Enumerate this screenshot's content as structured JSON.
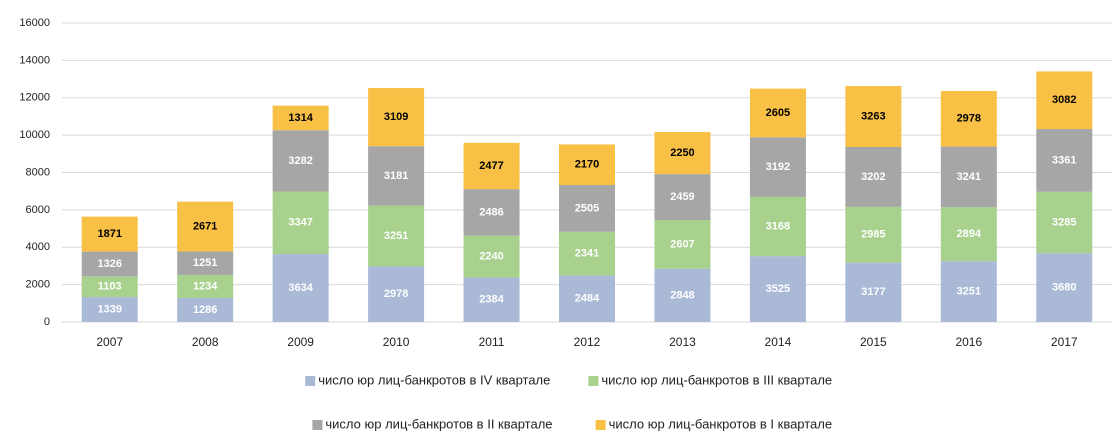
{
  "chart_data": {
    "type": "stacked_bar",
    "categories": [
      "2007",
      "2008",
      "2009",
      "2010",
      "2011",
      "2012",
      "2013",
      "2014",
      "2015",
      "2016",
      "2017"
    ],
    "series": [
      {
        "name": "число юр лиц-банкротов в IV квартале",
        "color": "#a9b9d6",
        "label_color": "#ffffff",
        "values": [
          1339,
          1286,
          3634,
          2978,
          2384,
          2484,
          2848,
          3525,
          3177,
          3251,
          3680
        ]
      },
      {
        "name": "число юр лиц-банкротов в III квартале",
        "color": "#a7d18c",
        "label_color": "#ffffff",
        "values": [
          1103,
          1234,
          3347,
          3251,
          2240,
          2341,
          2607,
          3168,
          2985,
          2894,
          3285
        ]
      },
      {
        "name": "число юр лиц-банкротов в II квартале",
        "color": "#a6a6a6",
        "label_color": "#ffffff",
        "values": [
          1326,
          1251,
          3282,
          3181,
          2486,
          2505,
          2459,
          3192,
          3202,
          3241,
          3361
        ]
      },
      {
        "name": "число юр лиц-банкротов в I квартале",
        "color": "#f8c146",
        "label_color": "#000000",
        "values": [
          1871,
          2671,
          1314,
          3109,
          2477,
          2170,
          2250,
          2605,
          3263,
          2978,
          3082
        ]
      }
    ],
    "ylim": [
      0,
      16000
    ],
    "yticks": [
      0,
      2000,
      4000,
      6000,
      8000,
      10000,
      12000,
      14000,
      16000
    ],
    "grid": true,
    "legend": "bottom"
  }
}
